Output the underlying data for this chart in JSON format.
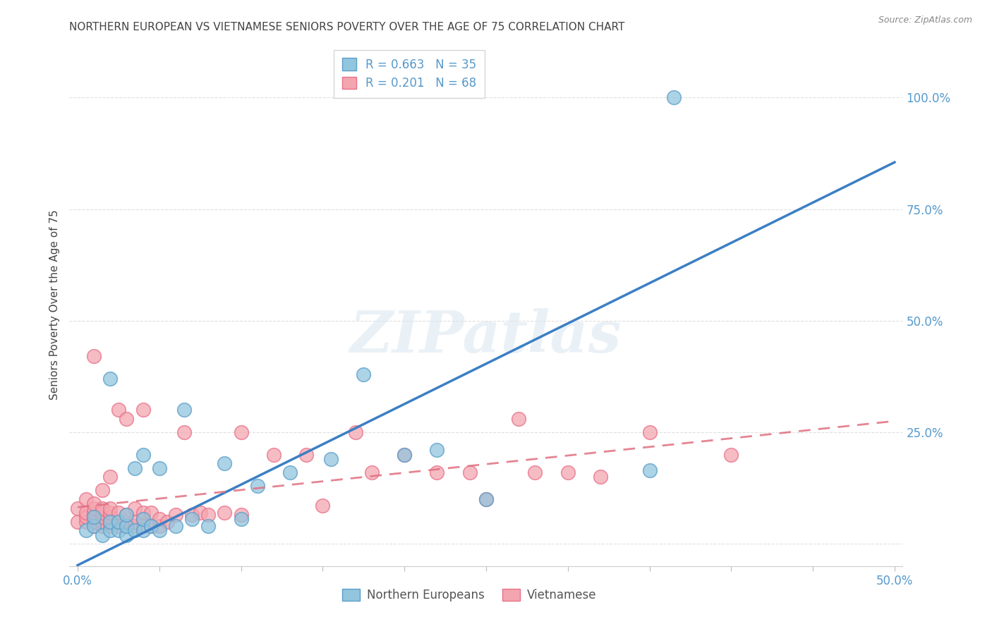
{
  "title": "NORTHERN EUROPEAN VS VIETNAMESE SENIORS POVERTY OVER THE AGE OF 75 CORRELATION CHART",
  "source": "Source: ZipAtlas.com",
  "ylabel": "Seniors Poverty Over the Age of 75",
  "xlim": [
    -0.005,
    0.505
  ],
  "ylim": [
    -0.05,
    1.12
  ],
  "xticks": [
    0.0,
    0.05,
    0.1,
    0.15,
    0.2,
    0.25,
    0.3,
    0.35,
    0.4,
    0.45,
    0.5
  ],
  "xticklabels": [
    "0.0%",
    "",
    "",
    "",
    "",
    "",
    "",
    "",
    "",
    "",
    "50.0%"
  ],
  "yticks": [
    0.0,
    0.25,
    0.5,
    0.75,
    1.0
  ],
  "yticklabels": [
    "",
    "25.0%",
    "50.0%",
    "75.0%",
    "100.0%"
  ],
  "blue_color": "#92c5de",
  "pink_color": "#f4a6b0",
  "blue_edge_color": "#5b9ec9",
  "pink_edge_color": "#e87088",
  "blue_line_color": "#3b7fc4",
  "pink_line_color": "#e07080",
  "title_color": "#444444",
  "axis_tick_color": "#5599cc",
  "R_blue": 0.663,
  "N_blue": 35,
  "R_pink": 0.201,
  "N_pink": 68,
  "blue_scatter_x": [
    0.005,
    0.01,
    0.01,
    0.015,
    0.02,
    0.02,
    0.02,
    0.025,
    0.025,
    0.03,
    0.03,
    0.03,
    0.035,
    0.035,
    0.04,
    0.04,
    0.04,
    0.045,
    0.05,
    0.05,
    0.06,
    0.065,
    0.07,
    0.08,
    0.09,
    0.1,
    0.11,
    0.13,
    0.155,
    0.175,
    0.2,
    0.22,
    0.25,
    0.35,
    0.365
  ],
  "blue_scatter_y": [
    0.03,
    0.04,
    0.06,
    0.02,
    0.03,
    0.05,
    0.37,
    0.03,
    0.05,
    0.02,
    0.04,
    0.065,
    0.03,
    0.17,
    0.03,
    0.055,
    0.2,
    0.04,
    0.03,
    0.17,
    0.04,
    0.3,
    0.055,
    0.04,
    0.18,
    0.055,
    0.13,
    0.16,
    0.19,
    0.38,
    0.2,
    0.21,
    0.1,
    0.165,
    1.0
  ],
  "pink_scatter_x": [
    0.0,
    0.0,
    0.005,
    0.005,
    0.005,
    0.005,
    0.01,
    0.01,
    0.01,
    0.01,
    0.01,
    0.01,
    0.01,
    0.015,
    0.015,
    0.015,
    0.015,
    0.015,
    0.015,
    0.02,
    0.02,
    0.02,
    0.02,
    0.02,
    0.02,
    0.025,
    0.025,
    0.025,
    0.025,
    0.03,
    0.03,
    0.03,
    0.03,
    0.035,
    0.035,
    0.035,
    0.04,
    0.04,
    0.04,
    0.04,
    0.045,
    0.045,
    0.05,
    0.05,
    0.055,
    0.06,
    0.065,
    0.07,
    0.075,
    0.08,
    0.09,
    0.1,
    0.1,
    0.12,
    0.14,
    0.15,
    0.17,
    0.18,
    0.2,
    0.22,
    0.24,
    0.25,
    0.27,
    0.28,
    0.3,
    0.32,
    0.35,
    0.4
  ],
  "pink_scatter_y": [
    0.05,
    0.08,
    0.05,
    0.06,
    0.07,
    0.1,
    0.04,
    0.05,
    0.06,
    0.07,
    0.08,
    0.09,
    0.42,
    0.04,
    0.05,
    0.06,
    0.07,
    0.08,
    0.12,
    0.04,
    0.05,
    0.06,
    0.07,
    0.08,
    0.15,
    0.04,
    0.05,
    0.07,
    0.3,
    0.04,
    0.05,
    0.065,
    0.28,
    0.04,
    0.05,
    0.08,
    0.04,
    0.055,
    0.07,
    0.3,
    0.04,
    0.07,
    0.04,
    0.055,
    0.05,
    0.065,
    0.25,
    0.065,
    0.07,
    0.065,
    0.07,
    0.065,
    0.25,
    0.2,
    0.2,
    0.085,
    0.25,
    0.16,
    0.2,
    0.16,
    0.16,
    0.1,
    0.28,
    0.16,
    0.16,
    0.15,
    0.25,
    0.2
  ],
  "blue_line_x0": 0.0,
  "blue_line_y0": -0.048,
  "blue_line_x1": 0.5,
  "blue_line_y1": 0.855,
  "pink_line_x0": 0.0,
  "pink_line_y0": 0.082,
  "pink_line_x1": 0.5,
  "pink_line_y1": 0.275,
  "watermark": "ZIPatlas",
  "background_color": "#ffffff",
  "grid_color": "#e0e0e0"
}
